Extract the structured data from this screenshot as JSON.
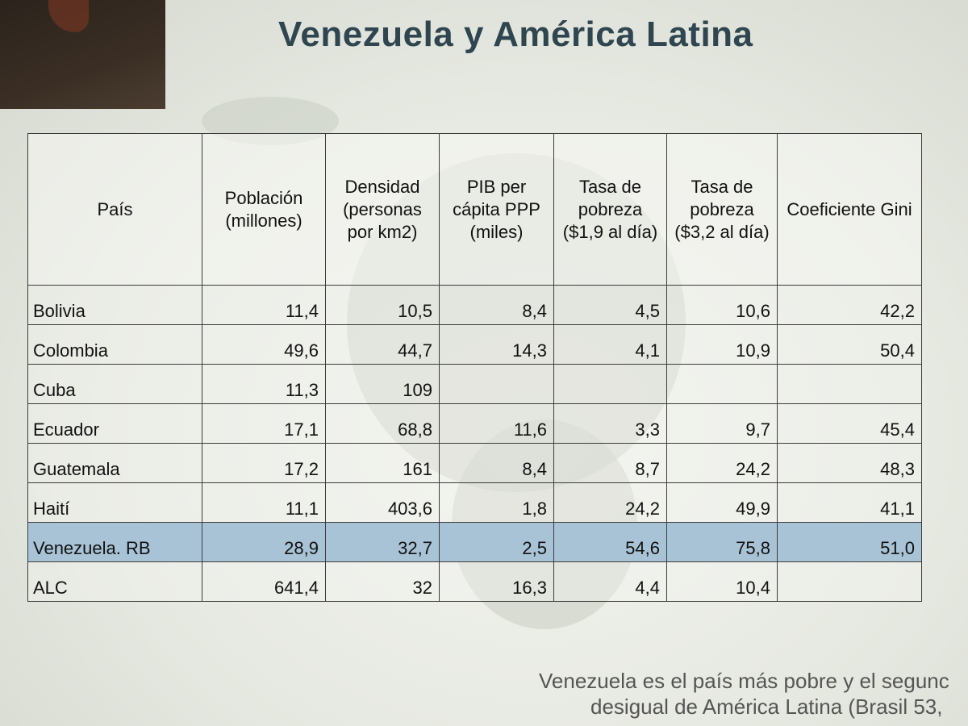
{
  "title": "Venezuela y América Latina",
  "table": {
    "headers": [
      "País",
      "Población (millones)",
      "Densidad (personas por km2)",
      "PIB per cápita PPP (miles)",
      "Tasa de pobreza ($1,9 al día)",
      "Tasa de pobreza ($3,2 al día)",
      "Coeficiente Gini"
    ],
    "rows": [
      [
        "Bolivia",
        "11,4",
        "10,5",
        "8,4",
        "4,5",
        "10,6",
        "42,2"
      ],
      [
        "Colombia",
        "49,6",
        "44,7",
        "14,3",
        "4,1",
        "10,9",
        "50,4"
      ],
      [
        "Cuba",
        "11,3",
        "109",
        "",
        "",
        "",
        ""
      ],
      [
        "Ecuador",
        "17,1",
        "68,8",
        "11,6",
        "3,3",
        "9,7",
        "45,4"
      ],
      [
        "Guatemala",
        "17,2",
        "161",
        "8,4",
        "8,7",
        "24,2",
        "48,3"
      ],
      [
        "Haití",
        "11,1",
        "403,6",
        "1,8",
        "24,2",
        "49,9",
        "41,1"
      ],
      [
        "Venezuela. RB",
        "28,9",
        "32,7",
        "2,5",
        "54,6",
        "75,8",
        "51,0"
      ],
      [
        "ALC",
        "641,4",
        "32",
        "16,3",
        "4,4",
        "10,4",
        ""
      ]
    ],
    "highlight_color": "#a8c3d6"
  },
  "footer": {
    "line1": "Venezuela es el país más pobre y el segunc",
    "line2": "desigual de América Latina (Brasil 53,"
  },
  "colors": {
    "title": "#2f4650"
  }
}
